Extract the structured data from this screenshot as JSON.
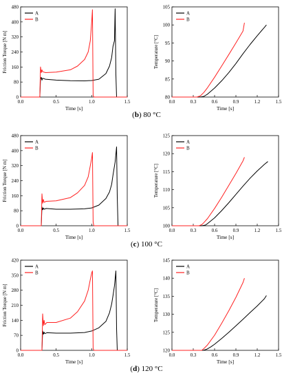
{
  "captions": [
    {
      "letter": "b",
      "text": "80 °C"
    },
    {
      "letter": "c",
      "text": "100 °C"
    },
    {
      "letter": "d",
      "text": "120 °C"
    }
  ],
  "colors": {
    "A": "#000000",
    "B": "#ff2020"
  },
  "chart_data": [
    {
      "type": "line",
      "panel": "b-torque",
      "xlabel": "Time [s]",
      "ylabel": "Friction Torque [N m]",
      "xlim": [
        0.0,
        1.5
      ],
      "ylim": [
        0,
        480
      ],
      "xticks": [
        "0.0",
        "0.5",
        "1.0",
        "1.5"
      ],
      "yticks": [
        "0",
        "80",
        "160",
        "240",
        "320",
        "400",
        "480"
      ],
      "legend": [
        "A",
        "B"
      ],
      "legend_position": "top-left",
      "series": [
        {
          "name": "A",
          "x": [
            0.0,
            0.27,
            0.28,
            0.29,
            0.3,
            0.31,
            0.35,
            0.5,
            0.7,
            0.9,
            1.0,
            1.1,
            1.2,
            1.25,
            1.28,
            1.3,
            1.32,
            1.33,
            1.34,
            1.35,
            1.36,
            1.5
          ],
          "y": [
            0,
            0,
            95,
            105,
            90,
            100,
            95,
            90,
            87,
            86,
            88,
            95,
            125,
            165,
            210,
            270,
            300,
            470,
            120,
            0,
            0,
            0
          ]
        },
        {
          "name": "B",
          "x": [
            0.0,
            0.27,
            0.28,
            0.29,
            0.3,
            0.31,
            0.35,
            0.5,
            0.7,
            0.8,
            0.9,
            0.95,
            0.98,
            0.99,
            1.0,
            1.01,
            1.02,
            1.03,
            1.5
          ],
          "y": [
            0,
            0,
            160,
            130,
            145,
            135,
            130,
            133,
            145,
            165,
            200,
            240,
            300,
            350,
            400,
            465,
            10,
            0,
            0
          ]
        }
      ]
    },
    {
      "type": "line",
      "panel": "b-temp",
      "xlabel": "Time [s]",
      "ylabel": "Temperature [°C]",
      "xlim": [
        0.0,
        1.5
      ],
      "ylim": [
        80,
        105
      ],
      "xticks": [
        "0.0",
        "0.3",
        "0.6",
        "0.9",
        "1.2",
        "1.5"
      ],
      "yticks": [
        "80",
        "85",
        "90",
        "95",
        "100",
        "105"
      ],
      "legend": [
        "A",
        "B"
      ],
      "legend_position": "top-left",
      "series": [
        {
          "name": "A",
          "x": [
            0.0,
            0.4,
            0.45,
            0.5,
            0.6,
            0.7,
            0.8,
            0.9,
            1.0,
            1.1,
            1.2,
            1.3,
            1.33
          ],
          "y": [
            80,
            80,
            80.2,
            80.8,
            82.5,
            84.5,
            86.8,
            89.3,
            92.0,
            94.6,
            97.0,
            99.3,
            100
          ]
        },
        {
          "name": "B",
          "x": [
            0.0,
            0.35,
            0.4,
            0.45,
            0.5,
            0.6,
            0.7,
            0.8,
            0.9,
            1.0,
            1.02
          ],
          "y": [
            80,
            80,
            80.3,
            81.3,
            82.6,
            85.5,
            88.6,
            91.8,
            95.0,
            98.3,
            100.6
          ]
        }
      ]
    },
    {
      "type": "line",
      "panel": "c-torque",
      "xlabel": "Time [s]",
      "ylabel": "Friction Torque [N m]",
      "xlim": [
        0.0,
        1.5
      ],
      "ylim": [
        0,
        480
      ],
      "xticks": [
        "0.0",
        "0.5",
        "1.0",
        "1.5"
      ],
      "yticks": [
        "0",
        "80",
        "160",
        "240",
        "320",
        "400",
        "480"
      ],
      "legend": [
        "A",
        "B"
      ],
      "legend_position": "top-left",
      "series": [
        {
          "name": "A",
          "x": [
            0.0,
            0.29,
            0.3,
            0.31,
            0.32,
            0.33,
            0.36,
            0.5,
            0.7,
            0.9,
            1.0,
            1.1,
            1.2,
            1.25,
            1.28,
            1.3,
            1.33,
            1.35,
            1.36,
            1.37,
            1.38,
            1.5
          ],
          "y": [
            0,
            0,
            100,
            85,
            95,
            88,
            92,
            88,
            88,
            90,
            95,
            110,
            145,
            180,
            220,
            270,
            340,
            420,
            150,
            0,
            0,
            0
          ]
        },
        {
          "name": "B",
          "x": [
            0.0,
            0.29,
            0.3,
            0.31,
            0.32,
            0.33,
            0.36,
            0.5,
            0.7,
            0.8,
            0.9,
            0.95,
            0.98,
            1.0,
            1.01,
            1.02,
            1.03,
            1.5
          ],
          "y": [
            0,
            0,
            170,
            120,
            140,
            125,
            130,
            133,
            150,
            175,
            215,
            260,
            320,
            360,
            390,
            20,
            0,
            0
          ]
        }
      ]
    },
    {
      "type": "line",
      "panel": "c-temp",
      "xlabel": "Time [s]",
      "ylabel": "Temperature [°C]",
      "xlim": [
        0.0,
        1.5
      ],
      "ylim": [
        100,
        125
      ],
      "xticks": [
        "0.0",
        "0.3",
        "0.6",
        "0.9",
        "1.2",
        "1.5"
      ],
      "yticks": [
        "100",
        "105",
        "110",
        "115",
        "120",
        "125"
      ],
      "legend": [
        "A",
        "B"
      ],
      "legend_position": "top-left",
      "series": [
        {
          "name": "A",
          "x": [
            0.0,
            0.42,
            0.47,
            0.5,
            0.6,
            0.7,
            0.8,
            0.9,
            1.0,
            1.1,
            1.2,
            1.3,
            1.35
          ],
          "y": [
            100,
            100,
            100.2,
            100.6,
            102.2,
            104.2,
            106.4,
            108.7,
            111.0,
            113.2,
            115.2,
            117.0,
            117.8
          ]
        },
        {
          "name": "B",
          "x": [
            0.0,
            0.38,
            0.42,
            0.45,
            0.5,
            0.6,
            0.7,
            0.8,
            0.9,
            1.0,
            1.02
          ],
          "y": [
            100,
            100,
            100.3,
            100.9,
            102.0,
            104.8,
            107.9,
            111.2,
            114.5,
            118.0,
            119.0
          ]
        }
      ]
    },
    {
      "type": "line",
      "panel": "d-torque",
      "xlabel": "Time [s]",
      "ylabel": "Friction Torque [N m]",
      "xlim": [
        0.0,
        1.5
      ],
      "ylim": [
        0,
        420
      ],
      "xticks": [
        "0.0",
        "0.5",
        "1.0",
        "1.5"
      ],
      "yticks": [
        "0",
        "70",
        "140",
        "210",
        "280",
        "350",
        "420"
      ],
      "legend": [
        "A",
        "B"
      ],
      "legend_position": "top-left",
      "series": [
        {
          "name": "A",
          "x": [
            0.0,
            0.3,
            0.31,
            0.32,
            0.33,
            0.34,
            0.37,
            0.5,
            0.7,
            0.9,
            1.0,
            1.1,
            1.2,
            1.25,
            1.28,
            1.3,
            1.32,
            1.34,
            1.35,
            1.36,
            1.5
          ],
          "y": [
            0,
            0,
            90,
            75,
            85,
            78,
            82,
            80,
            80,
            83,
            90,
            105,
            135,
            175,
            215,
            255,
            300,
            370,
            100,
            0,
            0
          ]
        },
        {
          "name": "B",
          "x": [
            0.0,
            0.3,
            0.31,
            0.32,
            0.33,
            0.34,
            0.37,
            0.5,
            0.7,
            0.8,
            0.9,
            0.95,
            0.98,
            1.0,
            1.01,
            1.02,
            1.03,
            1.5
          ],
          "y": [
            0,
            0,
            170,
            115,
            140,
            120,
            130,
            130,
            150,
            180,
            230,
            280,
            330,
            360,
            370,
            10,
            0,
            0
          ]
        }
      ]
    },
    {
      "type": "line",
      "panel": "d-temp",
      "xlabel": "Time [s]",
      "ylabel": "Temperature [°C]",
      "xlim": [
        0.0,
        1.5
      ],
      "ylim": [
        120,
        145
      ],
      "xticks": [
        "0.0",
        "0.3",
        "0.6",
        "0.9",
        "1.2",
        "1.5"
      ],
      "yticks": [
        "120",
        "125",
        "130",
        "135",
        "140",
        "145"
      ],
      "legend": [
        "A",
        "B"
      ],
      "legend_position": "top-left",
      "series": [
        {
          "name": "A",
          "x": [
            0.0,
            0.44,
            0.49,
            0.55,
            0.6,
            0.7,
            0.8,
            0.9,
            1.0,
            1.1,
            1.2,
            1.3,
            1.33
          ],
          "y": [
            120,
            120,
            120.3,
            121.0,
            121.7,
            123.3,
            125.0,
            126.8,
            128.6,
            130.5,
            132.3,
            134.3,
            135.2
          ]
        },
        {
          "name": "B",
          "x": [
            0.0,
            0.42,
            0.45,
            0.5,
            0.6,
            0.7,
            0.8,
            0.9,
            1.0,
            1.02
          ],
          "y": [
            120,
            120,
            120.5,
            121.5,
            124.2,
            127.5,
            131.0,
            134.7,
            138.8,
            140.0
          ]
        }
      ]
    }
  ]
}
